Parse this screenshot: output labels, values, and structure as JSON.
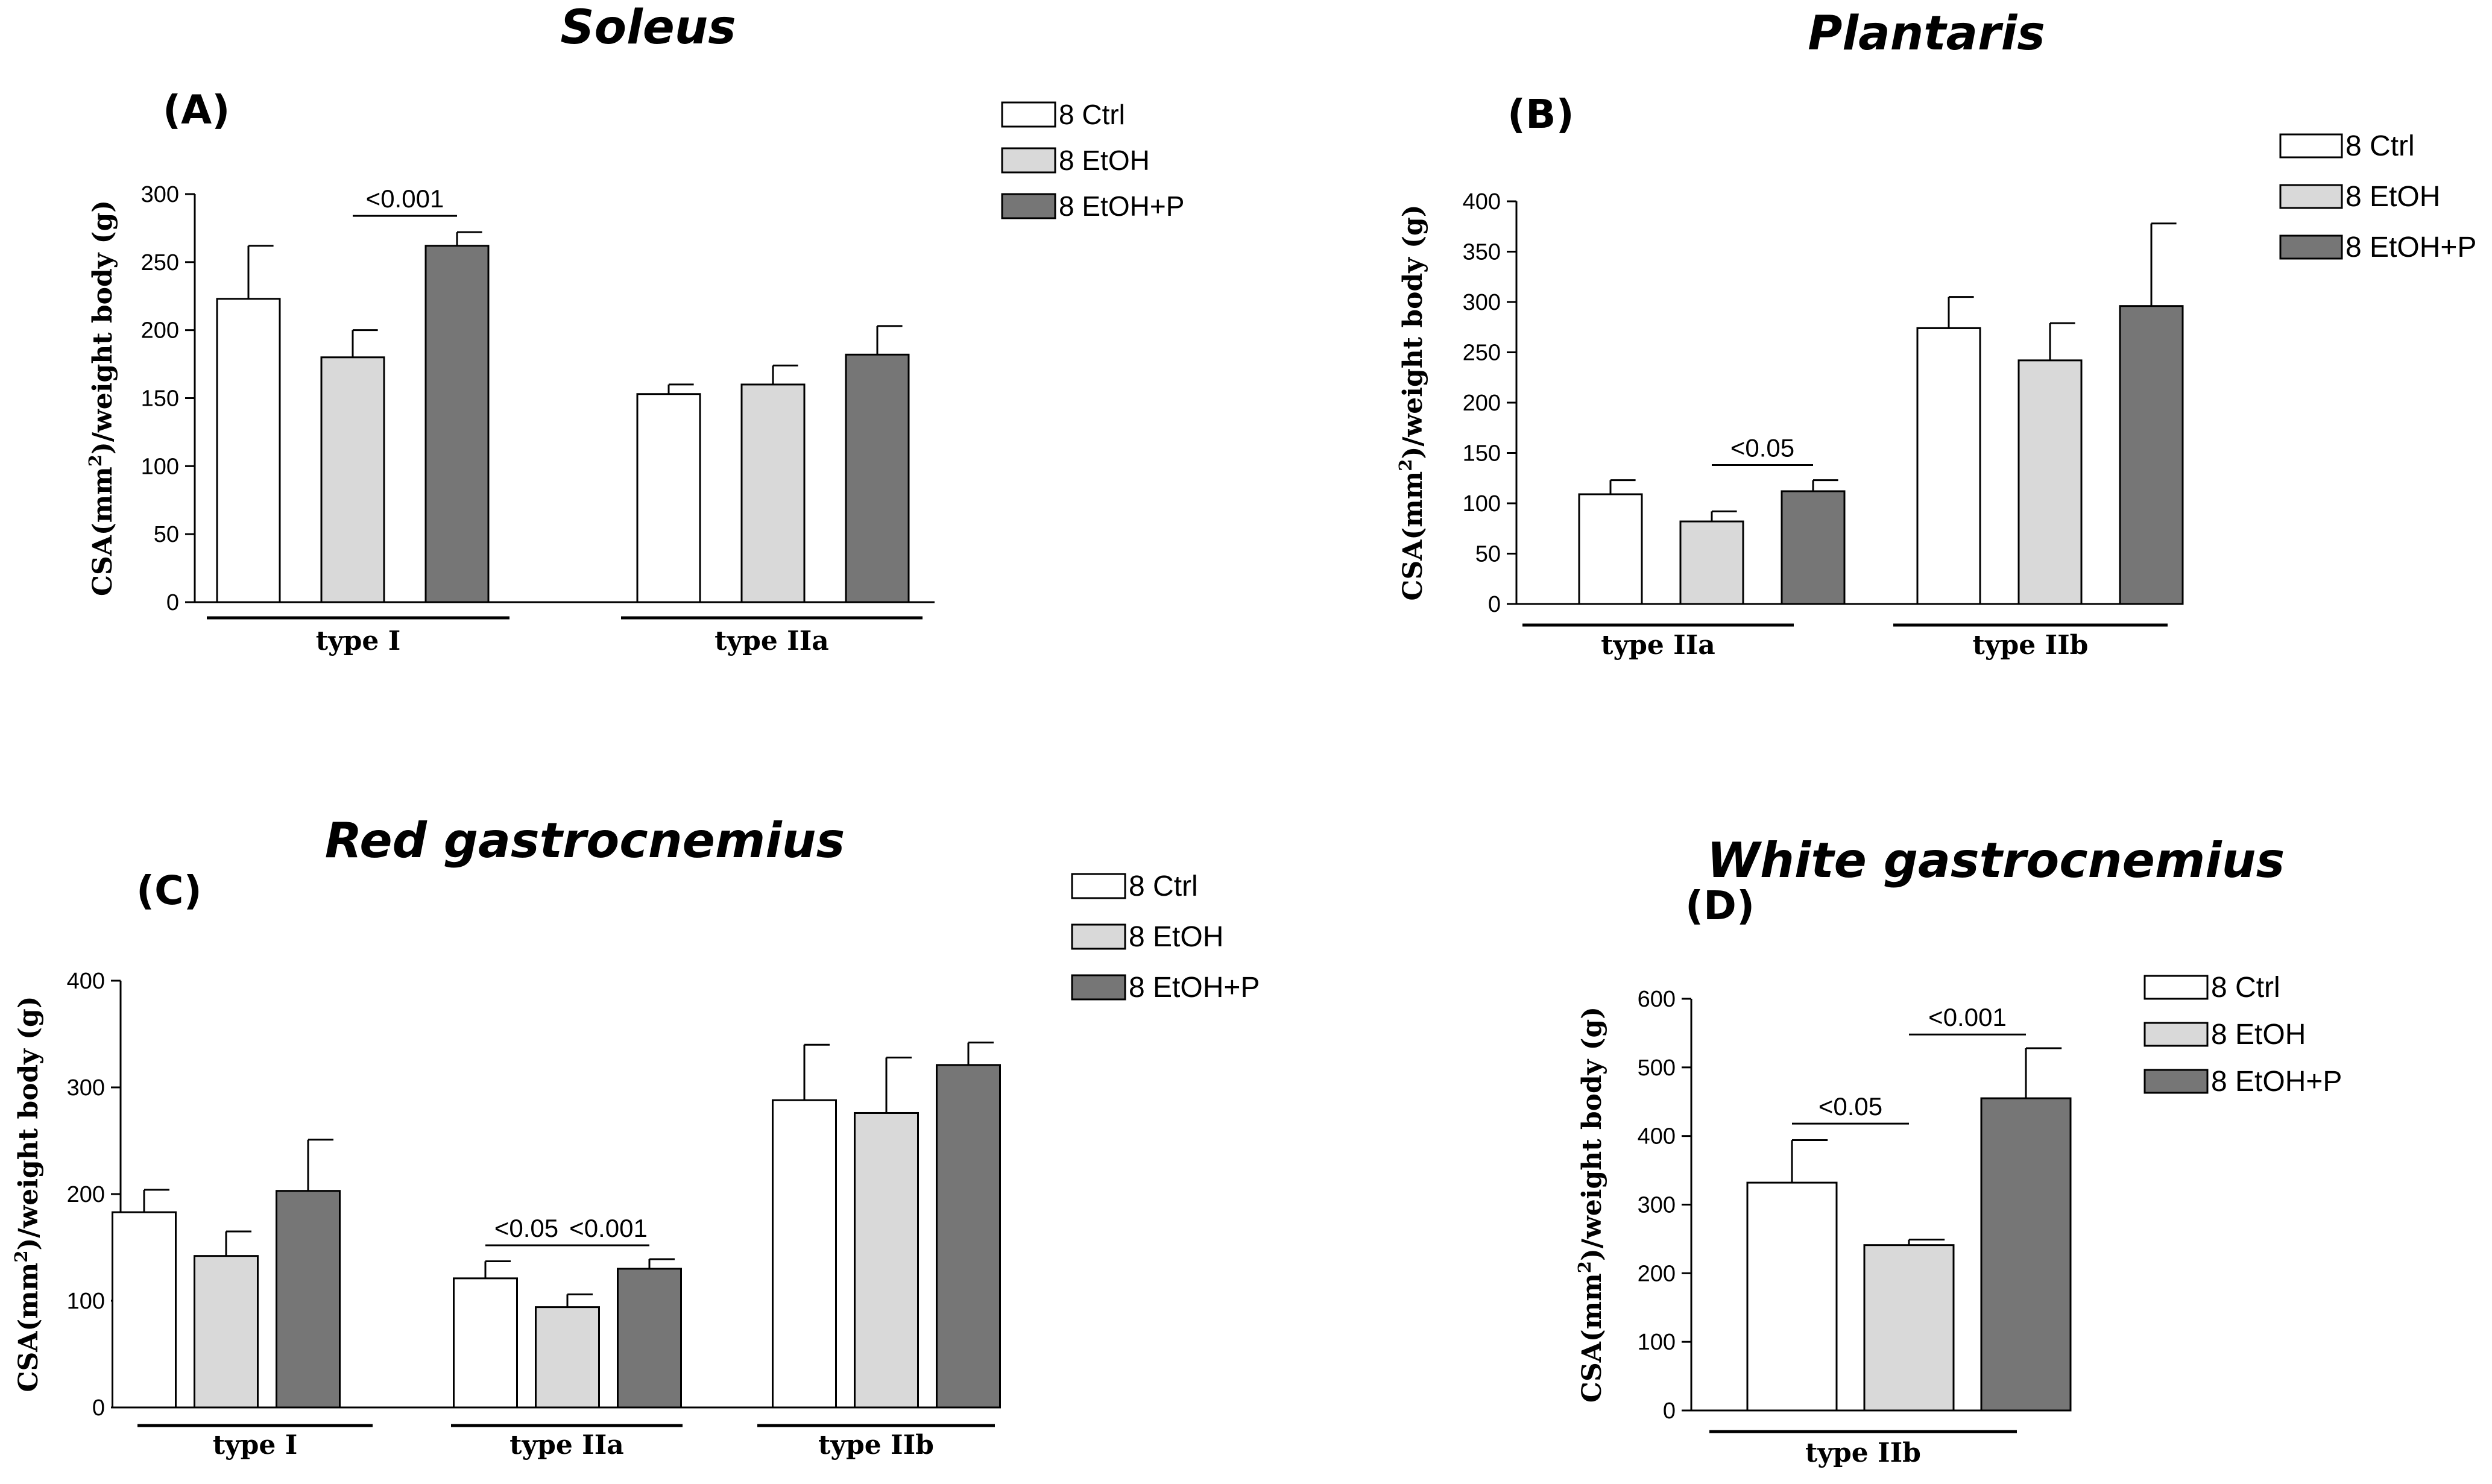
{
  "chart_data": [
    {
      "type": "bar",
      "panel": "(A)",
      "title": "Soleus",
      "ylabel": "CSA(mm²)/weight body (g)",
      "ylabel_main": "CSA(mm",
      "ylabel_sup": "2",
      "ylabel_rest": ")/weight body (g)",
      "ylim": [
        0,
        300
      ],
      "yticks": [
        0,
        50,
        100,
        150,
        200,
        250,
        300
      ],
      "categories": [
        "type I",
        "type IIa"
      ],
      "series": [
        {
          "name": "8 Ctrl",
          "values": [
            223,
            153
          ],
          "errors": [
            39,
            7
          ],
          "color": "#ffffff"
        },
        {
          "name": "8 EtOH",
          "values": [
            180,
            160
          ],
          "errors": [
            20,
            14
          ],
          "color": "#d9d9d9"
        },
        {
          "name": "8 EtOH+P",
          "values": [
            262,
            182
          ],
          "errors": [
            10,
            21
          ],
          "color": "#767676"
        }
      ],
      "significance": [
        {
          "label": "<0.001",
          "category": 0,
          "from": 1,
          "to": 2,
          "y": 284
        }
      ]
    },
    {
      "type": "bar",
      "panel": "(B)",
      "title": "Plantaris",
      "ylabel": "CSA(mm²)/weight body (g)",
      "ylabel_main": "CSA(mm",
      "ylabel_sup": "2",
      "ylabel_rest": ")/weight body (g)",
      "ylim": [
        0,
        400
      ],
      "yticks": [
        0,
        50,
        100,
        150,
        200,
        250,
        300,
        350,
        400
      ],
      "categories": [
        "type IIa",
        "type IIb"
      ],
      "series": [
        {
          "name": "8 Ctrl",
          "values": [
            109,
            274
          ],
          "errors": [
            14,
            31
          ],
          "color": "#ffffff"
        },
        {
          "name": "8 EtOH",
          "values": [
            82,
            242
          ],
          "errors": [
            10,
            37
          ],
          "color": "#d9d9d9"
        },
        {
          "name": "8 EtOH+P",
          "values": [
            112,
            296
          ],
          "errors": [
            11,
            82
          ],
          "color": "#767676"
        }
      ],
      "significance": [
        {
          "label": "<0.05",
          "category": 0,
          "from": 1,
          "to": 2,
          "y": 138
        }
      ]
    },
    {
      "type": "bar",
      "panel": "(C)",
      "title": "Red gastrocnemius",
      "ylabel": "CSA(mm²)/weight body (g)",
      "ylabel_main": "CSA(mm",
      "ylabel_sup": "2",
      "ylabel_rest": ")/weight body (g)",
      "ylim": [
        0,
        400
      ],
      "yticks": [
        0,
        100,
        200,
        300,
        400
      ],
      "categories": [
        "type I",
        "type IIa",
        "type IIb"
      ],
      "series": [
        {
          "name": "8 Ctrl",
          "values": [
            183,
            121,
            288
          ],
          "errors": [
            21,
            16,
            52
          ],
          "color": "#ffffff"
        },
        {
          "name": "8 EtOH",
          "values": [
            142,
            94,
            276
          ],
          "errors": [
            23,
            12,
            52
          ],
          "color": "#d9d9d9"
        },
        {
          "name": "8 EtOH+P",
          "values": [
            203,
            130,
            321
          ],
          "errors": [
            48,
            9,
            21
          ],
          "color": "#767676"
        }
      ],
      "significance": [
        {
          "label": "<0.05",
          "category": 1,
          "from": 0,
          "to": 1,
          "y": 152
        },
        {
          "label": "<0.001",
          "category": 1,
          "from": 1,
          "to": 2,
          "y": 152
        }
      ]
    },
    {
      "type": "bar",
      "panel": "(D)",
      "title": "White gastrocnemius",
      "ylabel": "CSA(mm²)/weight body (g)",
      "ylabel_main": "CSA(mm",
      "ylabel_sup": "2",
      "ylabel_rest": ")/weight body (g)",
      "ylim": [
        0,
        600
      ],
      "yticks": [
        0,
        100,
        200,
        300,
        400,
        500,
        600
      ],
      "categories": [
        "type IIb"
      ],
      "series": [
        {
          "name": "8 Ctrl",
          "values": [
            332
          ],
          "errors": [
            62
          ],
          "color": "#ffffff"
        },
        {
          "name": "8 EtOH",
          "values": [
            241
          ],
          "errors": [
            8
          ],
          "color": "#d9d9d9"
        },
        {
          "name": "8 EtOH+P",
          "values": [
            455
          ],
          "errors": [
            73
          ],
          "color": "#767676"
        }
      ],
      "significance": [
        {
          "label": "<0.05",
          "category": 0,
          "from": 0,
          "to": 1,
          "y": 418
        },
        {
          "label": "<0.001",
          "category": 0,
          "from": 1,
          "to": 2,
          "y": 548
        }
      ]
    }
  ]
}
